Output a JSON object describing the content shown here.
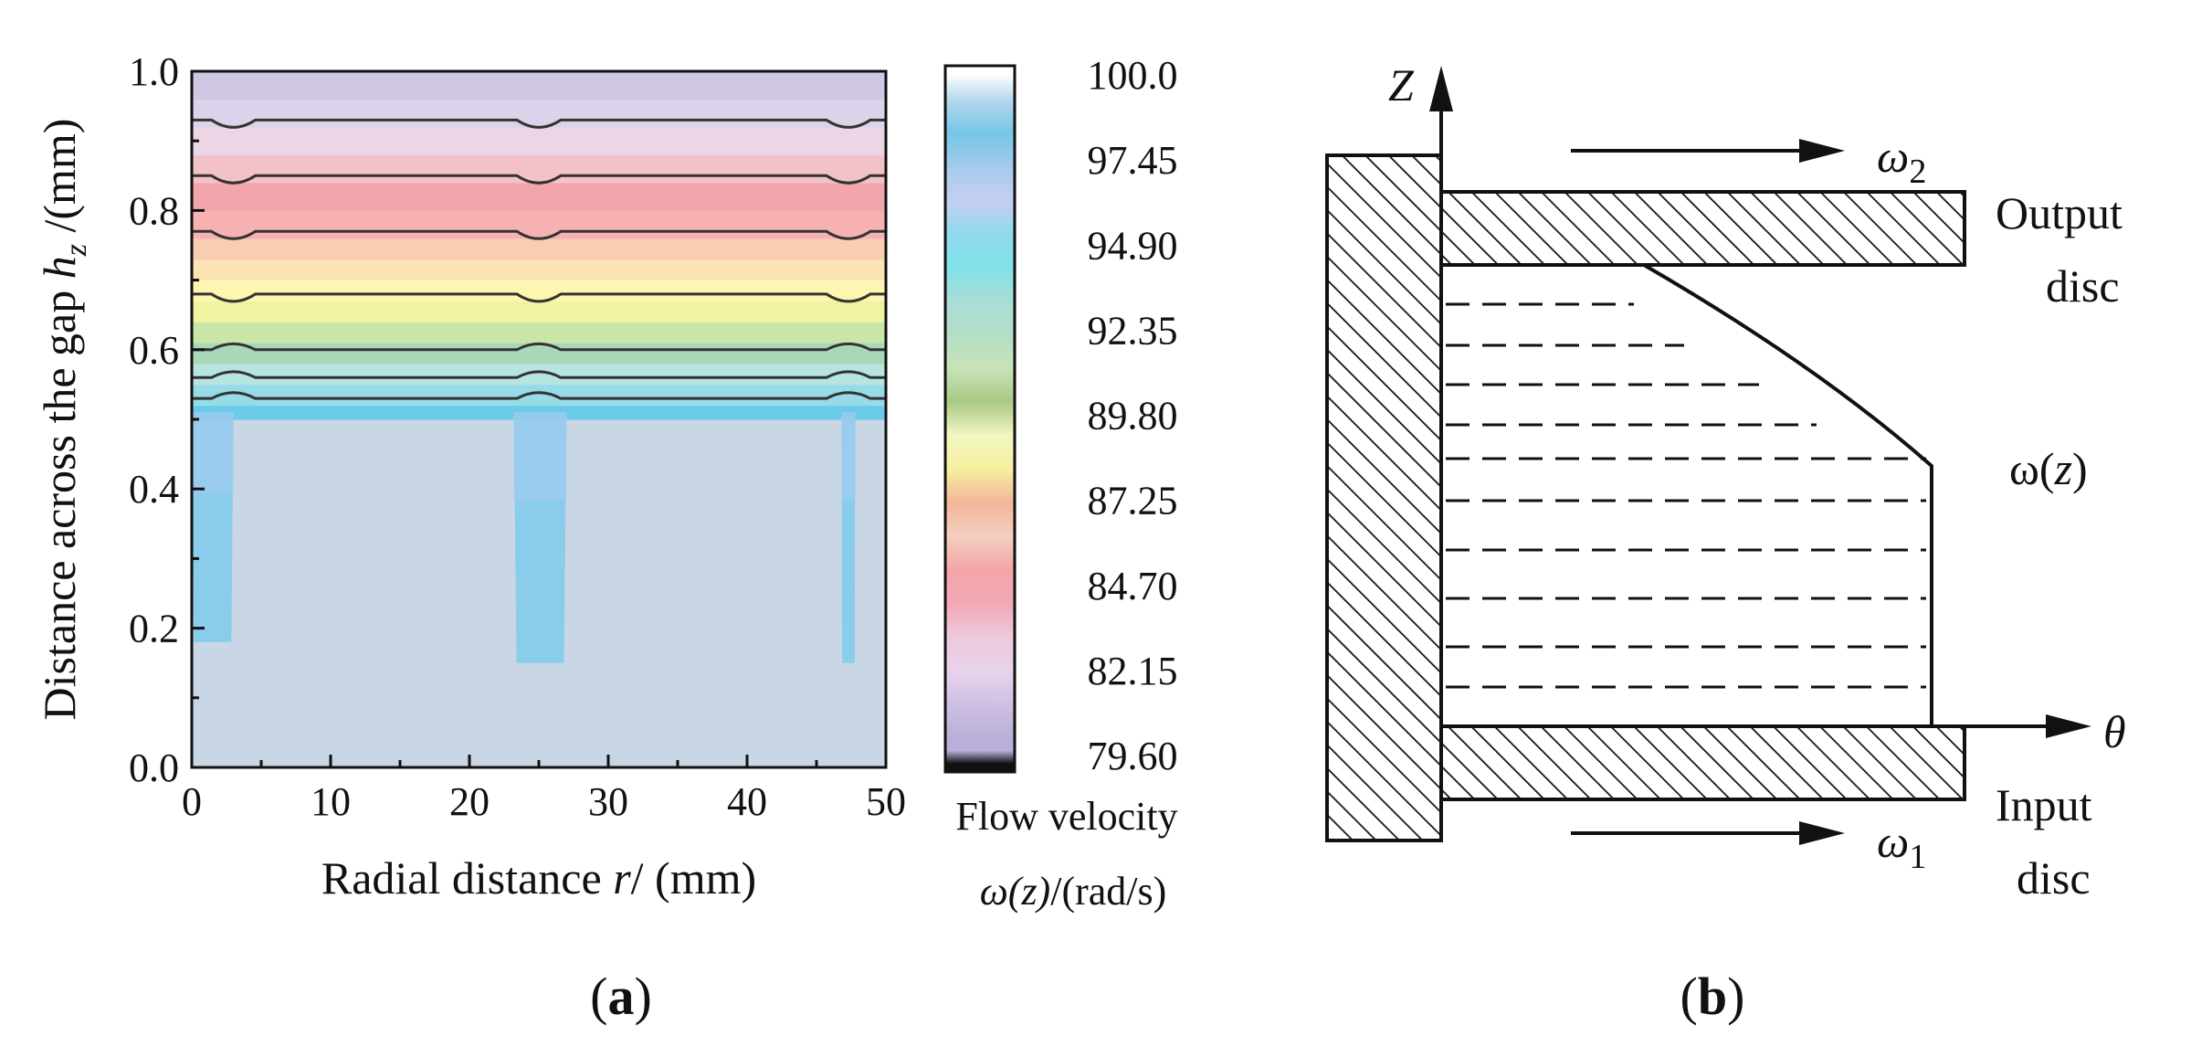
{
  "chart_data": [
    {
      "type": "contour",
      "panel_label": "a",
      "xlabel": {
        "pre": "Radial distance ",
        "var": "r",
        "post": "/ (mm)"
      },
      "ylabel": {
        "pre": "Distance across the gap ",
        "var": "h",
        "sub": "z",
        "post": " /(mm)"
      },
      "xlim": [
        0,
        50
      ],
      "ylim": [
        0,
        1.0
      ],
      "xticks": [
        0,
        10,
        20,
        30,
        40,
        50
      ],
      "xtick_labels": [
        "0",
        "10",
        "20",
        "30",
        "40",
        "50"
      ],
      "yticks": [
        0.0,
        0.2,
        0.4,
        0.6,
        0.8,
        1.0
      ],
      "ytick_labels": [
        "0.0",
        "0.2",
        "0.4",
        "0.6",
        "0.8",
        "1.0"
      ],
      "field": "Flow velocity omega(z) (rad/s)",
      "base_level_below_h": 0.51,
      "base_color": "#c9d6e6",
      "layers": [
        {
          "h0": 0.5,
          "h1": 0.52,
          "color": "#6ccbe8"
        },
        {
          "h0": 0.52,
          "h1": 0.55,
          "color": "#96dbe6"
        },
        {
          "h0": 0.55,
          "h1": 0.58,
          "color": "#b6e4df"
        },
        {
          "h0": 0.58,
          "h1": 0.61,
          "color": "#a9d8b8"
        },
        {
          "h0": 0.61,
          "h1": 0.64,
          "color": "#c8e6a6"
        },
        {
          "h0": 0.64,
          "h1": 0.67,
          "color": "#eef4a2"
        },
        {
          "h0": 0.67,
          "h1": 0.7,
          "color": "#fdf6b0"
        },
        {
          "h0": 0.7,
          "h1": 0.73,
          "color": "#fde4b4"
        },
        {
          "h0": 0.73,
          "h1": 0.76,
          "color": "#f8cdb2"
        },
        {
          "h0": 0.76,
          "h1": 0.8,
          "color": "#f5b2b1"
        },
        {
          "h0": 0.8,
          "h1": 0.84,
          "color": "#f2a6ab"
        },
        {
          "h0": 0.84,
          "h1": 0.88,
          "color": "#f2c2c8"
        },
        {
          "h0": 0.88,
          "h1": 0.92,
          "color": "#ecd6e6"
        },
        {
          "h0": 0.92,
          "h1": 0.96,
          "color": "#dcd2ea"
        },
        {
          "h0": 0.96,
          "h1": 1.0,
          "color": "#cfc7e3"
        }
      ],
      "pockets": [
        {
          "r0": 0.0,
          "r1": 3.0,
          "h_bottom": 0.18,
          "h_top": 0.51,
          "color": "#7ecbeb"
        },
        {
          "r0": 23.2,
          "r1": 27.0,
          "h_bottom": 0.15,
          "h_top": 0.51,
          "color": "#7ecbeb"
        },
        {
          "r0": 46.8,
          "r1": 47.8,
          "h_bottom": 0.15,
          "h_top": 0.51,
          "color": "#7ecbeb"
        }
      ],
      "contour_levels_h": [
        0.53,
        0.56,
        0.6,
        0.68,
        0.77,
        0.85,
        0.93
      ],
      "dip_locations_r": [
        3.0,
        25.0,
        47.3
      ],
      "colorbar": {
        "min": 79.6,
        "max": 100.0,
        "tick_values": [
          100.0,
          97.45,
          94.9,
          92.35,
          89.8,
          87.25,
          84.7,
          82.15,
          79.6
        ],
        "tick_labels": [
          "100.0",
          "97.45",
          "94.90",
          "92.35",
          "89.80",
          "87.25",
          "84.70",
          "82.15",
          "79.60"
        ],
        "title_line1": "Flow velocity",
        "title_line2": {
          "var": "ω(z)",
          "post": "/(rad/s)"
        },
        "stops_top_to_bottom": [
          "#ffffff",
          "#b6d8ee",
          "#74c6e6",
          "#a3cbee",
          "#c6d0f0",
          "#8fd9ee",
          "#7fe3e8",
          "#a9ddd8",
          "#b3dfc6",
          "#c7e3b7",
          "#a9c986",
          "#f4f7c4",
          "#f6ef9f",
          "#f3b69a",
          "#f5cfbf",
          "#f3a5a9",
          "#f2a9b6",
          "#eec9db",
          "#e7d3eb",
          "#cfc0e3",
          "#b9afd8",
          "#111111"
        ]
      }
    },
    {
      "type": "diagram",
      "panel_label": "b",
      "labels": {
        "z_axis": "Z",
        "theta_axis": "θ",
        "omega2": {
          "sym": "ω",
          "sub": "2"
        },
        "omega1": {
          "sym": "ω",
          "sub": "1"
        },
        "output_line1": "Output",
        "output_line2": "disc",
        "input_line1": "Input",
        "input_line2": "disc",
        "profile": {
          "pre": "ω(",
          "var": "z",
          "post": ")"
        }
      }
    }
  ]
}
